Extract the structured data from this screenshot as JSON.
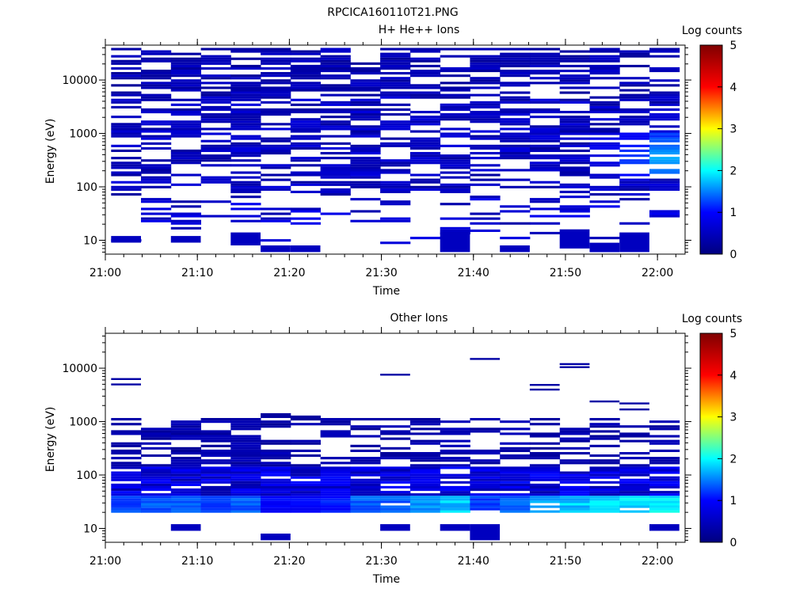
{
  "figure_title": "RPCICA160110T21.PNG",
  "chart_data": [
    {
      "type": "heatmap",
      "title": "H+ He++ Ions",
      "xlabel": "Time",
      "ylabel": "Energy (eV)",
      "colorbar_label": "Log counts",
      "x_ticks": [
        "21:00",
        "21:10",
        "21:20",
        "21:30",
        "21:40",
        "21:50",
        "22:00"
      ],
      "y_ticks": [
        "10",
        "100",
        "1000",
        "10000"
      ],
      "y_scale": "log",
      "ylim_eV": [
        5.5,
        45000
      ],
      "xlim": [
        "21:00",
        "22:03"
      ],
      "colorbar_ticks": [
        "0",
        "1",
        "2",
        "3",
        "4",
        "5"
      ],
      "colorbar_range": [
        0,
        5
      ],
      "colormap": [
        "#00007f",
        "#0000ff",
        "#00ffff",
        "#ffff00",
        "#ff0000",
        "#7f0000"
      ],
      "time_bins": [
        "21:02:15",
        "21:05:30",
        "21:08:45",
        "21:12:00",
        "21:15:15",
        "21:18:30",
        "21:21:45",
        "21:25:00",
        "21:28:15",
        "21:31:30",
        "21:34:45",
        "21:38:00",
        "21:41:15",
        "21:44:30",
        "21:47:45",
        "21:51:00",
        "21:54:15",
        "21:57:30",
        "22:00:45"
      ],
      "energy_range_eV": [
        10,
        40000
      ],
      "typical_log_counts": {
        "low_energy_band_20_to_60_eV": 0.6,
        "mid_energy_100_to_5000_eV": 0.5,
        "high_energy_above_5000_eV": 0.4,
        "peak_value": 1.7,
        "peak_time": "22:02",
        "peak_energy_eV": 350
      }
    },
    {
      "type": "heatmap",
      "title": "Other Ions",
      "xlabel": "Time",
      "ylabel": "Energy (eV)",
      "colorbar_label": "Log counts",
      "x_ticks": [
        "21:00",
        "21:10",
        "21:20",
        "21:30",
        "21:40",
        "21:50",
        "22:00"
      ],
      "y_ticks": [
        "10",
        "100",
        "1000",
        "10000"
      ],
      "y_scale": "log",
      "ylim_eV": [
        5.5,
        45000
      ],
      "xlim": [
        "21:00",
        "22:03"
      ],
      "colorbar_ticks": [
        "0",
        "1",
        "2",
        "3",
        "4",
        "5"
      ],
      "colorbar_range": [
        0,
        5
      ],
      "colormap": [
        "#00007f",
        "#0000ff",
        "#00ffff",
        "#ffff00",
        "#ff0000",
        "#7f0000"
      ],
      "time_bins": [
        "21:02:15",
        "21:05:30",
        "21:08:45",
        "21:12:00",
        "21:15:15",
        "21:18:30",
        "21:21:45",
        "21:25:00",
        "21:28:15",
        "21:31:30",
        "21:34:45",
        "21:38:00",
        "21:41:15",
        "21:44:30",
        "21:47:45",
        "21:51:00",
        "21:54:15",
        "21:57:30",
        "22:00:45"
      ],
      "energy_range_eV": [
        10,
        16000
      ],
      "band_peak_log_counts": [
        1.4,
        1.5,
        1.5,
        1.4,
        1.5,
        1.1,
        1.1,
        1.2,
        1.5,
        1.5,
        1.8,
        2.0,
        1.4,
        1.6,
        1.9,
        2.0,
        2.1,
        2.1,
        2.2
      ],
      "typical_log_counts": {
        "band_20_to_40_eV": 1.7,
        "band_50_to_150_eV": 0.7,
        "above_200_eV": 0.3,
        "peak_value": 2.2,
        "peak_time": "22:02",
        "peak_energy_eV": 35
      },
      "isolated_high_energy_traces_eV": [
        5000,
        6300,
        7600,
        15000,
        4000,
        4900,
        10500,
        12000,
        2400,
        2200,
        1700
      ]
    }
  ]
}
